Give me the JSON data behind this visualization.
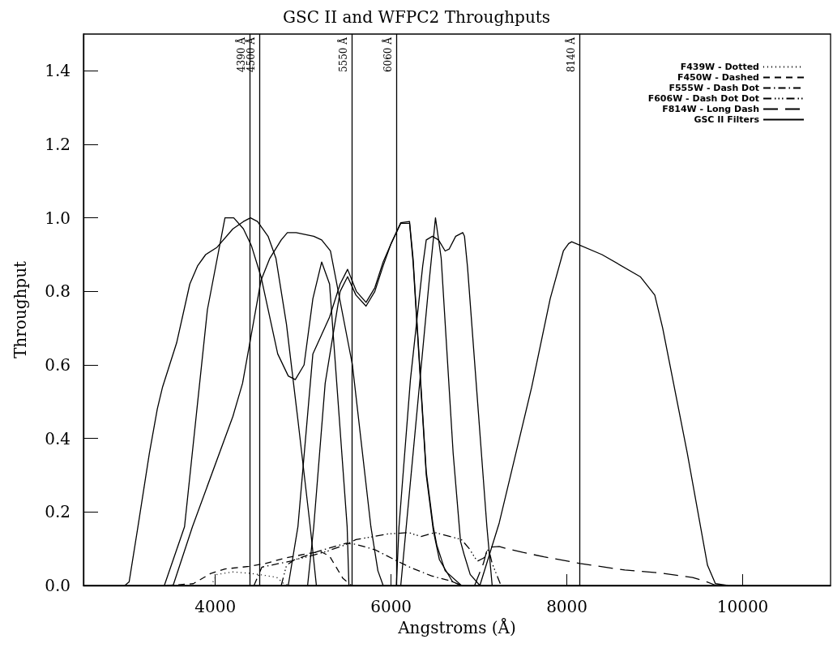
{
  "chart_data": {
    "type": "line",
    "title": "GSC II and WFPC2 Throughputs",
    "xlabel": "Angstroms (Å)",
    "ylabel": "Throughput",
    "xlim": [
      2500,
      11000
    ],
    "xticks": [
      4000,
      6000,
      8000,
      10000
    ],
    "ylim": [
      0,
      1.5
    ],
    "yticks": [
      {
        "value": 0,
        "label": "0.0"
      },
      {
        "value": 0.2,
        "label": "0.2"
      },
      {
        "value": 0.4,
        "label": "0.4"
      },
      {
        "value": 0.6,
        "label": "0.6"
      },
      {
        "value": 0.8,
        "label": "0.8"
      },
      {
        "value": 1.0,
        "label": "1.0"
      },
      {
        "value": 1.2,
        "label": "1.2"
      },
      {
        "value": 1.4,
        "label": "1.4"
      }
    ],
    "grid": false,
    "legend": "top right",
    "marker": "none",
    "ref_lines": [
      {
        "axis": "x",
        "value": 4390,
        "label": "4390 Å",
        "color": "#000000"
      },
      {
        "axis": "x",
        "value": 4500,
        "label": "4500 Å",
        "color": "#000000"
      },
      {
        "axis": "x",
        "value": 5550,
        "label": "5550 Å",
        "color": "#000000"
      },
      {
        "axis": "x",
        "value": 6060,
        "label": "6060 Å",
        "color": "#000000"
      },
      {
        "axis": "x",
        "value": 8140,
        "label": "8140 Å",
        "color": "#000000"
      }
    ],
    "series": [
      {
        "name": "F439W - Dotted",
        "color": "#000000",
        "line_style": "dotted",
        "x": [
          3950,
          4020,
          4200,
          4400,
          4550,
          4700,
          4780,
          4850
        ],
        "values": [
          0,
          0.03,
          0.037,
          0.033,
          0.028,
          0.022,
          0.005,
          0
        ]
      },
      {
        "name": "F450W - Dashed",
        "color": "#000000",
        "line_style": "dashed",
        "x": [
          3450,
          3750,
          3950,
          4110,
          4385,
          4570,
          4800,
          5080,
          5200,
          5300,
          5450,
          5550
        ],
        "values": [
          0,
          0.005,
          0.033,
          0.045,
          0.052,
          0.06,
          0.075,
          0.088,
          0.092,
          0.08,
          0.02,
          0
        ]
      },
      {
        "name": "F555W - Dash Dot",
        "color": "#000000",
        "line_style": "dashdot",
        "x": [
          4440,
          4530,
          4870,
          5170,
          5490,
          5600,
          5820,
          6040,
          6220,
          6460,
          6680,
          6800
        ],
        "values": [
          0,
          0.05,
          0.067,
          0.093,
          0.115,
          0.112,
          0.097,
          0.07,
          0.049,
          0.026,
          0.012,
          0
        ]
      },
      {
        "name": "F606W - Dash Dot Dot",
        "color": "#000000",
        "line_style": "dashdotdot",
        "x": [
          4750,
          4810,
          4900,
          5080,
          5270,
          5470,
          5600,
          5800,
          5950,
          6200,
          6340,
          6500,
          6800,
          6890,
          6980,
          7055,
          7110,
          7150,
          7250
        ],
        "values": [
          0,
          0.055,
          0.07,
          0.08,
          0.093,
          0.11,
          0.125,
          0.133,
          0.14,
          0.144,
          0.133,
          0.144,
          0.125,
          0.1,
          0.066,
          0.075,
          0.1,
          0.06,
          0
        ]
      },
      {
        "name": "F814W - Long Dash",
        "color": "#000000",
        "line_style": "longdash",
        "x": [
          6950,
          7050,
          7100,
          7230,
          7320,
          7500,
          7740,
          8150,
          8660,
          9060,
          9430,
          9580,
          9700
        ],
        "values": [
          0,
          0.06,
          0.104,
          0.106,
          0.1,
          0.09,
          0.078,
          0.06,
          0.042,
          0.034,
          0.022,
          0.011,
          0
        ]
      },
      {
        "name": "GSC II Filters",
        "color": "#000000",
        "line_style": "solid",
        "x": [
          2970,
          3020,
          3120,
          3250,
          3340,
          3400,
          3560,
          3710,
          3800,
          3890,
          4020,
          4200,
          4320,
          4400,
          4480,
          4600,
          4690,
          4810,
          4940,
          5080,
          5150
        ],
        "values": [
          0,
          0.01,
          0.16,
          0.36,
          0.48,
          0.54,
          0.66,
          0.82,
          0.87,
          0.9,
          0.92,
          0.97,
          0.99,
          1.0,
          0.99,
          0.95,
          0.89,
          0.71,
          0.45,
          0.16,
          0
        ]
      },
      {
        "color": "#000000",
        "line_style": "solid",
        "x": [
          3420,
          3650,
          3910,
          4110,
          4210,
          4320,
          4410,
          4520,
          4710,
          4830,
          4910,
          5010,
          5110,
          5210,
          5300,
          5500,
          5520
        ],
        "values": [
          0,
          0.16,
          0.75,
          1.0,
          1.0,
          0.97,
          0.925,
          0.84,
          0.63,
          0.57,
          0.56,
          0.6,
          0.78,
          0.88,
          0.82,
          0.16,
          0
        ]
      },
      {
        "color": "#000000",
        "line_style": "solid",
        "x": [
          3520,
          3740,
          4200,
          4310,
          4400,
          4520,
          4620,
          4750,
          4820,
          4920,
          5120,
          5210,
          5310,
          5560,
          5770,
          5850,
          5910
        ],
        "values": [
          0,
          0.16,
          0.46,
          0.55,
          0.67,
          0.83,
          0.89,
          0.94,
          0.96,
          0.96,
          0.95,
          0.94,
          0.91,
          0.6,
          0.16,
          0.04,
          0
        ]
      },
      {
        "color": "#000000",
        "line_style": "solid",
        "x": [
          4830,
          4940,
          5110,
          5300,
          5420,
          5505,
          5605,
          5715,
          5815,
          5910,
          6000,
          6110,
          6210,
          6250,
          6400,
          6480,
          6520,
          6615,
          6800
        ],
        "values": [
          0,
          0.16,
          0.63,
          0.73,
          0.82,
          0.86,
          0.8,
          0.77,
          0.81,
          0.88,
          0.93,
          0.987,
          0.99,
          0.89,
          0.31,
          0.16,
          0.11,
          0.04,
          0
        ]
      },
      {
        "color": "#000000",
        "line_style": "solid",
        "x": [
          5050,
          5120,
          5250,
          5420,
          5505,
          5600,
          5715,
          5815,
          5910,
          6000,
          6110,
          6210,
          6250,
          6400,
          6480,
          6550,
          6700,
          6800
        ],
        "values": [
          0,
          0.16,
          0.55,
          0.8,
          0.84,
          0.79,
          0.76,
          0.8,
          0.87,
          0.93,
          0.985,
          0.985,
          0.88,
          0.3,
          0.15,
          0.07,
          0.01,
          0
        ]
      },
      {
        "color": "#000000",
        "line_style": "solid",
        "x": [
          6110,
          6430,
          6505,
          6570,
          6706,
          6790,
          6830,
          6900,
          7010
        ],
        "values": [
          0,
          0.82,
          1.0,
          0.89,
          0.36,
          0.12,
          0.085,
          0.03,
          0
        ]
      },
      {
        "color": "#000000",
        "line_style": "solid",
        "x": [
          6060,
          6090,
          6220,
          6360,
          6400,
          6470,
          6540,
          6615,
          6660,
          6735,
          6815,
          6835,
          6870,
          7090,
          7150
        ],
        "values": [
          0,
          0.16,
          0.56,
          0.87,
          0.94,
          0.95,
          0.94,
          0.91,
          0.915,
          0.95,
          0.96,
          0.95,
          0.865,
          0.16,
          0
        ]
      },
      {
        "color": "#000000",
        "line_style": "solid",
        "x": [
          7010,
          7230,
          7600,
          7810,
          7960,
          8020,
          8055,
          8400,
          8835,
          9000,
          9090,
          9370,
          9600,
          9690,
          9830
        ],
        "values": [
          0,
          0.17,
          0.54,
          0.78,
          0.91,
          0.93,
          0.935,
          0.9,
          0.84,
          0.79,
          0.7,
          0.36,
          0.055,
          0.005,
          0
        ]
      }
    ]
  }
}
